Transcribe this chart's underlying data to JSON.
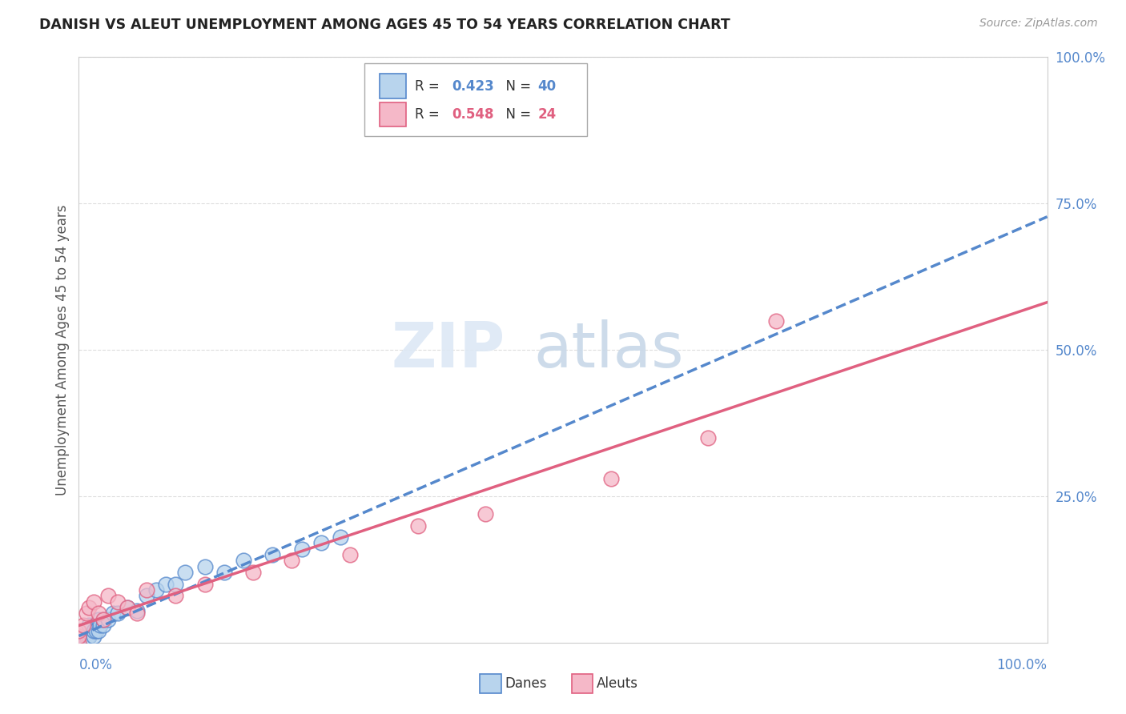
{
  "title": "DANISH VS ALEUT UNEMPLOYMENT AMONG AGES 45 TO 54 YEARS CORRELATION CHART",
  "source": "Source: ZipAtlas.com",
  "ylabel": "Unemployment Among Ages 45 to 54 years",
  "legend_r1": "R = 0.423",
  "legend_n1": "N = 40",
  "legend_r2": "R = 0.548",
  "legend_n2": "N = 24",
  "danes_fill": "#b8d4ed",
  "danes_edge": "#5588cc",
  "aleuts_fill": "#f5b8c8",
  "aleuts_edge": "#e06080",
  "danes_line_color": "#5588cc",
  "aleuts_line_color": "#e06080",
  "danes_x": [
    0.0,
    0.0,
    0.0,
    0.0,
    0.0,
    0.0,
    0.0,
    0.005,
    0.007,
    0.008,
    0.009,
    0.01,
    0.01,
    0.01,
    0.01,
    0.015,
    0.015,
    0.018,
    0.02,
    0.02,
    0.022,
    0.025,
    0.025,
    0.03,
    0.035,
    0.04,
    0.05,
    0.06,
    0.07,
    0.08,
    0.09,
    0.1,
    0.11,
    0.13,
    0.15,
    0.17,
    0.2,
    0.23,
    0.25,
    0.27
  ],
  "danes_y": [
    0.0,
    0.0,
    0.0,
    0.0,
    0.002,
    0.003,
    0.005,
    0.003,
    0.005,
    0.007,
    0.008,
    0.01,
    0.01,
    0.01,
    0.03,
    0.01,
    0.02,
    0.02,
    0.02,
    0.04,
    0.03,
    0.03,
    0.04,
    0.04,
    0.05,
    0.05,
    0.06,
    0.055,
    0.08,
    0.09,
    0.1,
    0.1,
    0.12,
    0.13,
    0.12,
    0.14,
    0.15,
    0.16,
    0.17,
    0.18
  ],
  "aleuts_x": [
    0.0,
    0.0,
    0.0,
    0.005,
    0.008,
    0.01,
    0.015,
    0.02,
    0.025,
    0.03,
    0.04,
    0.05,
    0.06,
    0.07,
    0.1,
    0.13,
    0.18,
    0.22,
    0.28,
    0.35,
    0.42,
    0.55,
    0.65,
    0.72
  ],
  "aleuts_y": [
    0.0,
    0.01,
    0.02,
    0.03,
    0.05,
    0.06,
    0.07,
    0.05,
    0.04,
    0.08,
    0.07,
    0.06,
    0.05,
    0.09,
    0.08,
    0.1,
    0.12,
    0.14,
    0.15,
    0.2,
    0.22,
    0.28,
    0.35,
    0.55
  ],
  "watermark_zip": "ZIP",
  "watermark_atlas": "atlas",
  "ytick_vals": [
    0.25,
    0.5,
    0.75,
    1.0
  ],
  "ytick_labels": [
    "25.0%",
    "50.0%",
    "75.0%",
    "100.0%"
  ],
  "xtick_left": "0.0%",
  "xtick_right": "100.0%",
  "grid_color": "#dddddd",
  "tick_color": "#5588cc"
}
